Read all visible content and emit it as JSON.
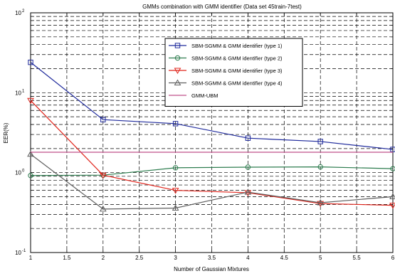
{
  "chart_data": {
    "type": "line",
    "title": "GMMs combination with GMM identifier (Data set 45train-7test)",
    "xlabel": "Number of Gaussian Mixtures",
    "ylabel": "EER(%)",
    "xlim": [
      1,
      6
    ],
    "ylim": [
      0.1,
      100
    ],
    "yscale": "log",
    "grid": true,
    "legend_position": "top-right",
    "x_ticks": [
      "1",
      "1.5",
      "2",
      "2.5",
      "3",
      "3.5",
      "4",
      "4.5",
      "5",
      "5.5",
      "6"
    ],
    "x_tick_values": [
      1,
      1.5,
      2,
      2.5,
      3,
      3.5,
      4,
      4.5,
      5,
      5.5,
      6
    ],
    "y_ticks": [
      {
        "base": "10",
        "exp": "-1",
        "value": 0.1
      },
      {
        "base": "10",
        "exp": "0",
        "value": 1
      },
      {
        "base": "10",
        "exp": "1",
        "value": 10
      },
      {
        "base": "10",
        "exp": "2",
        "value": 100
      }
    ],
    "series": [
      {
        "name": "SBM-SGMM & GMM identifier (type 1)",
        "color": "#1f2a9c",
        "marker": "square",
        "x": [
          1,
          2,
          3,
          4,
          5,
          6
        ],
        "y": [
          24,
          4.6,
          4.1,
          2.7,
          2.45,
          1.95
        ]
      },
      {
        "name": "SBM-SGMM & GMM identifier (type 2)",
        "color": "#2e7d4f",
        "marker": "circle",
        "x": [
          1,
          2,
          3,
          4,
          5,
          6
        ],
        "y": [
          0.92,
          0.93,
          1.15,
          1.17,
          1.18,
          1.12
        ]
      },
      {
        "name": "SBM-SGMM & GMM identifier (type 3)",
        "color": "#e0241b",
        "marker": "triangle-down",
        "x": [
          1,
          2,
          3,
          4,
          5,
          6
        ],
        "y": [
          8,
          0.93,
          0.6,
          0.56,
          0.41,
          0.39
        ]
      },
      {
        "name": "SBM-SGMM & GMM identifier (type 4)",
        "color": "#606060",
        "marker": "triangle-up",
        "x": [
          1,
          2,
          3,
          4,
          5,
          6
        ],
        "y": [
          1.7,
          0.35,
          0.36,
          0.57,
          0.42,
          0.5
        ]
      },
      {
        "name": "GMM-UBM",
        "color": "#c0508a",
        "marker": "none",
        "x": [
          1,
          6
        ],
        "y": [
          1.8,
          1.8
        ]
      }
    ]
  }
}
